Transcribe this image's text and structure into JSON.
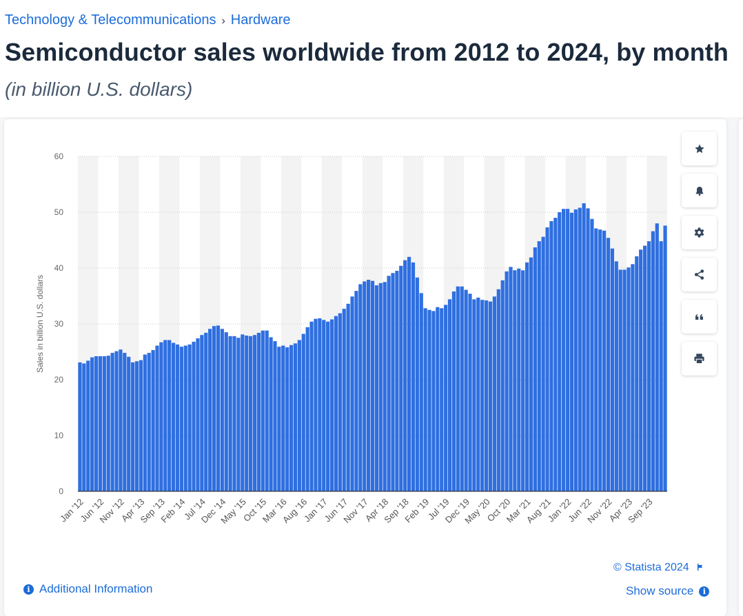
{
  "breadcrumb": {
    "category": "Technology & Telecommunications",
    "separator": "›",
    "subcategory": "Hardware"
  },
  "header": {
    "title": "Semiconductor sales worldwide from 2012 to 2024, by month",
    "subtitle": "(in billion U.S. dollars)"
  },
  "tools": [
    {
      "name": "favorite",
      "icon": "star-icon"
    },
    {
      "name": "notification",
      "icon": "bell-icon"
    },
    {
      "name": "settings",
      "icon": "gear-icon"
    },
    {
      "name": "share",
      "icon": "share-icon"
    },
    {
      "name": "cite",
      "icon": "quote-icon"
    },
    {
      "name": "print",
      "icon": "print-icon"
    }
  ],
  "footer": {
    "credit": "© Statista 2024",
    "additional_info": "Additional Information",
    "show_source": "Show source"
  },
  "colors": {
    "bar": "#2f6fe0",
    "link": "#1c6cd8",
    "title": "#1b2a3c",
    "band": "#f3f3f3"
  },
  "chart_data": {
    "type": "bar",
    "title": "Semiconductor sales worldwide from 2012 to 2024, by month",
    "ylabel": "Sales in billion U.S. dollars",
    "xlabel": "",
    "ylim": [
      0,
      60
    ],
    "yticks": [
      0,
      10,
      20,
      30,
      40,
      50,
      60
    ],
    "grid": true,
    "x_tick_labels": [
      "Jan '12",
      "Jun '12",
      "Nov '12",
      "Apr '13",
      "Sep '13",
      "Feb '14",
      "Jul '14",
      "Dec '14",
      "May '15",
      "Oct '15",
      "Mar '16",
      "Aug '16",
      "Jan '17",
      "Jun '17",
      "Nov '17",
      "Apr '18",
      "Sep '18",
      "Feb '19",
      "Jul '19",
      "Dec '19",
      "May '20",
      "Oct '20",
      "Mar '21",
      "Aug '21",
      "Jan '22",
      "Jun '22",
      "Nov '22",
      "Apr '23",
      "Sep '23"
    ],
    "x_tick_step": 5,
    "start": "Jan '12",
    "values": [
      23.1,
      22.9,
      23.4,
      24.0,
      24.2,
      24.2,
      24.2,
      24.3,
      24.8,
      25.1,
      25.4,
      24.8,
      24.1,
      23.1,
      23.3,
      23.5,
      24.5,
      24.8,
      25.3,
      26.1,
      26.7,
      27.1,
      27.1,
      26.6,
      26.3,
      25.9,
      26.1,
      26.3,
      26.8,
      27.4,
      28.0,
      28.4,
      29.1,
      29.6,
      29.7,
      29.1,
      28.5,
      27.8,
      27.8,
      27.5,
      28.1,
      27.9,
      27.8,
      28.0,
      28.4,
      28.8,
      28.8,
      27.6,
      26.9,
      25.9,
      26.1,
      25.8,
      26.2,
      26.5,
      27.1,
      28.2,
      29.4,
      30.4,
      30.9,
      31.0,
      30.7,
      30.4,
      30.8,
      31.4,
      31.9,
      32.7,
      33.6,
      34.9,
      35.9,
      37.1,
      37.6,
      37.9,
      37.7,
      36.9,
      37.3,
      37.5,
      38.6,
      39.1,
      39.5,
      40.4,
      41.4,
      42.0,
      41.0,
      38.3,
      35.5,
      32.8,
      32.5,
      32.3,
      33.0,
      32.8,
      33.4,
      34.4,
      35.8,
      36.7,
      36.7,
      36.1,
      35.4,
      34.4,
      34.7,
      34.3,
      34.2,
      34.0,
      34.9,
      36.2,
      37.8,
      39.4,
      40.2,
      39.6,
      39.9,
      39.6,
      41.0,
      41.9,
      43.7,
      44.8,
      45.6,
      47.3,
      48.4,
      49.0,
      50.0,
      50.6,
      50.6,
      49.9,
      50.5,
      50.8,
      51.6,
      50.7,
      48.8,
      47.1,
      46.9,
      46.7,
      45.4,
      43.5,
      41.2,
      39.7,
      39.7,
      40.1,
      40.7,
      42.1,
      43.3,
      44.0,
      44.8,
      46.6,
      48.0,
      44.8,
      47.6
    ]
  }
}
